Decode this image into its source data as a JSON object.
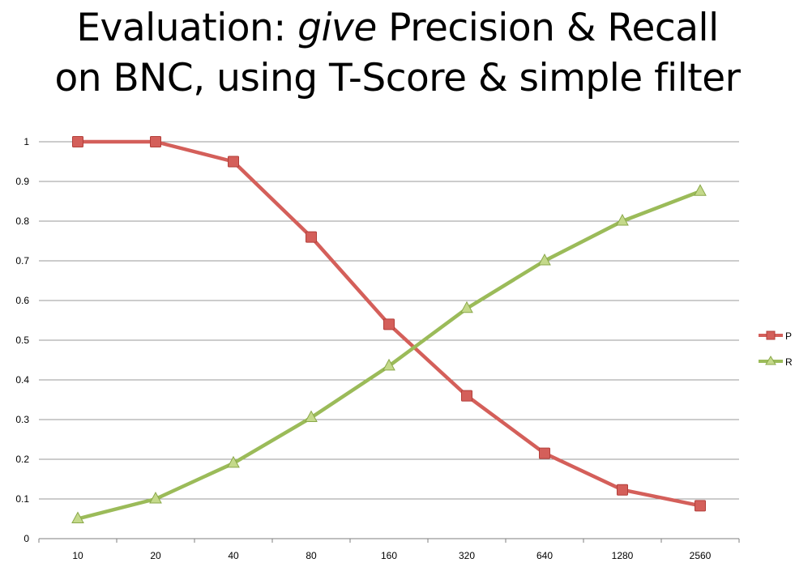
{
  "slide": {
    "title_line1_a": "Evaluation: ",
    "title_line1_em": "give",
    "title_line1_b": " Precision & Recall",
    "title_line2": "on BNC, using T-Score & simple filter"
  },
  "chart_data": {
    "type": "line",
    "title": "",
    "xlabel": "",
    "ylabel": "",
    "categories": [
      "10",
      "20",
      "40",
      "80",
      "160",
      "320",
      "640",
      "1280",
      "2560"
    ],
    "ylim": [
      0,
      1
    ],
    "yticks": [
      "0",
      "0.1",
      "0.2",
      "0.3",
      "0.4",
      "0.5",
      "0.6",
      "0.7",
      "0.8",
      "0.9",
      "1"
    ],
    "grid": true,
    "legend_position": "right",
    "series": [
      {
        "name": "P",
        "color": "#d45f5a",
        "marker": "square",
        "values": [
          1.0,
          1.0,
          0.95,
          0.76,
          0.54,
          0.36,
          0.215,
          0.123,
          0.083
        ]
      },
      {
        "name": "R",
        "color": "#9bbb59",
        "marker": "triangle",
        "values": [
          0.05,
          0.1,
          0.19,
          0.305,
          0.435,
          0.58,
          0.7,
          0.8,
          0.875
        ]
      }
    ]
  }
}
